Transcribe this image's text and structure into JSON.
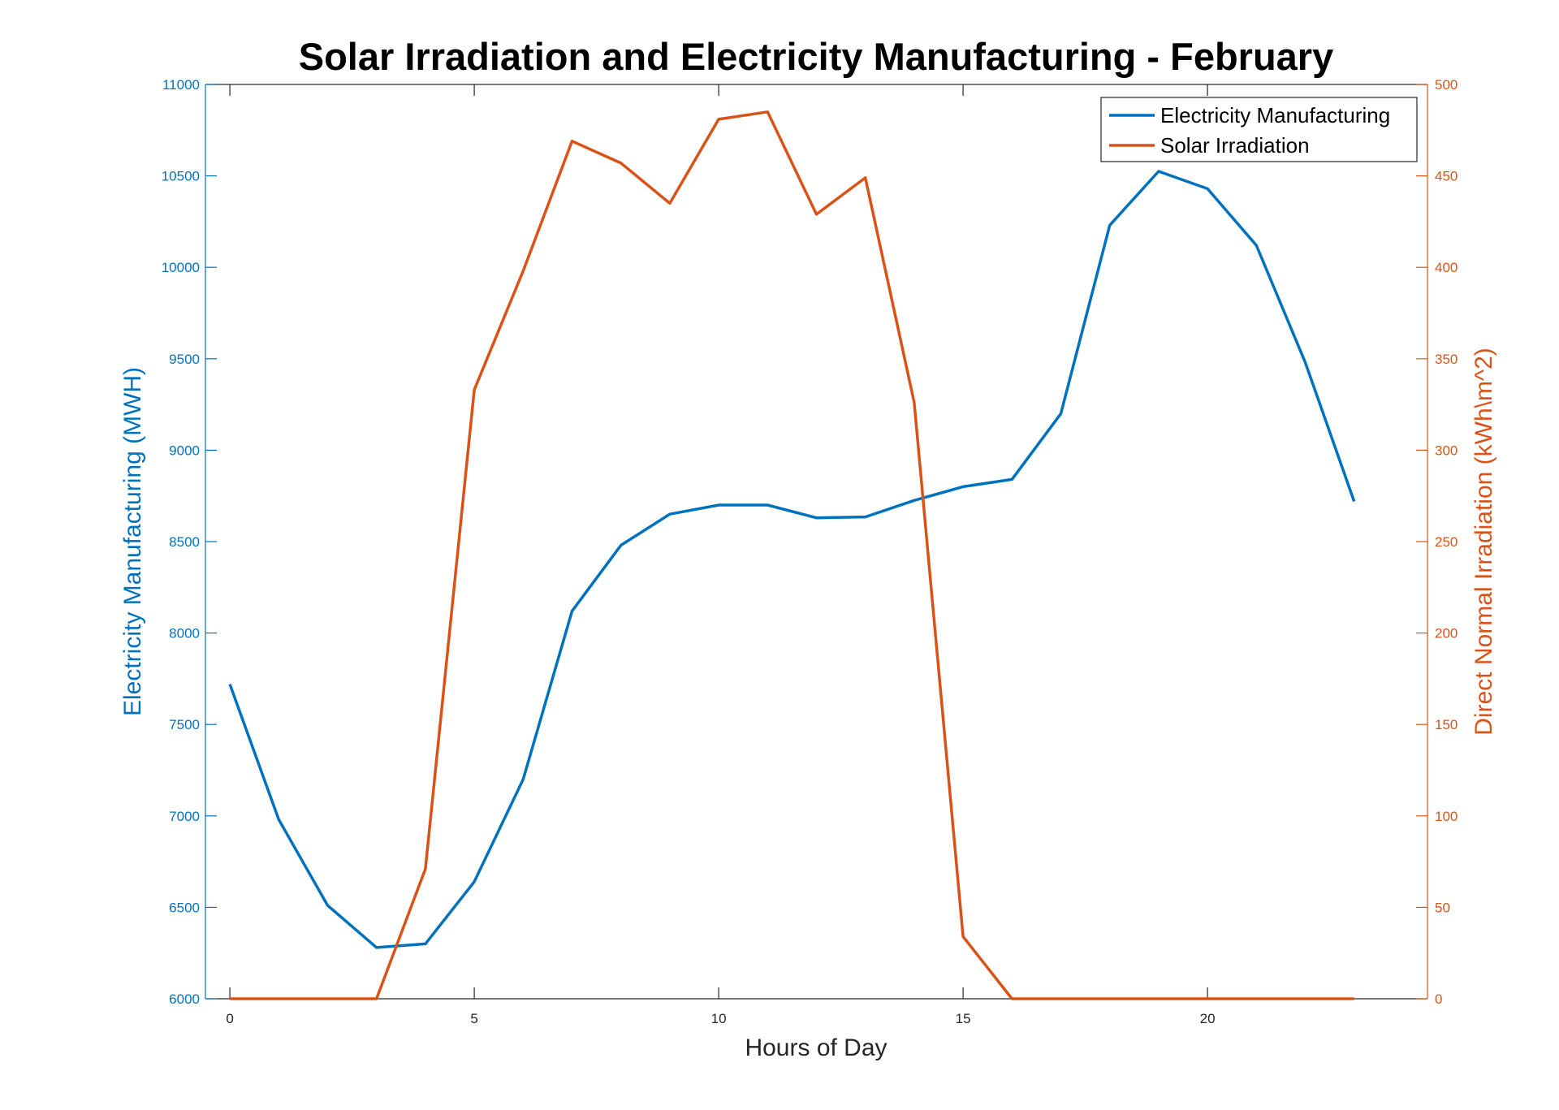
{
  "chart_data": {
    "type": "line",
    "title": "Solar Irradiation and Electricity Manufacturing - February",
    "xlabel": "Hours of Day",
    "ylabel_left": "Electricity Manufacturing (MWH)",
    "ylabel_right": "Direct Normal Irradiation (kWh\\m^2)",
    "xlim": [
      -0.5,
      24.5
    ],
    "ylim_left": [
      6000,
      11000
    ],
    "ylim_right": [
      0,
      500
    ],
    "xticks": [
      0,
      5,
      10,
      15,
      20
    ],
    "yticks_left": [
      6000,
      6500,
      7000,
      7500,
      8000,
      8500,
      9000,
      9500,
      10000,
      10500,
      11000
    ],
    "yticks_right": [
      0,
      50,
      100,
      150,
      200,
      250,
      300,
      350,
      400,
      450,
      500
    ],
    "grid": false,
    "legend_position": "top-right",
    "x": [
      0,
      1,
      2,
      3,
      4,
      5,
      6,
      7,
      8,
      9,
      10,
      11,
      12,
      13,
      14,
      15,
      16,
      17,
      18,
      19,
      20,
      21,
      22,
      23
    ],
    "series": [
      {
        "name": "Electricity Manufacturing",
        "axis": "left",
        "color": "#0072bd",
        "values": [
          7720,
          6980,
          6510,
          6280,
          6300,
          6640,
          7200,
          8120,
          8480,
          8650,
          8700,
          8700,
          8630,
          8635,
          8725,
          8800,
          8840,
          9200,
          10230,
          10525,
          10430,
          10120,
          9480,
          8720
        ]
      },
      {
        "name": "Solar Irradiation",
        "axis": "right",
        "color": "#d95319",
        "values": [
          0,
          0,
          0,
          0,
          71,
          333,
          398,
          469,
          457,
          435,
          481,
          485,
          429,
          449,
          326,
          34,
          0,
          0,
          0,
          0,
          0,
          0,
          0,
          0
        ]
      }
    ]
  }
}
